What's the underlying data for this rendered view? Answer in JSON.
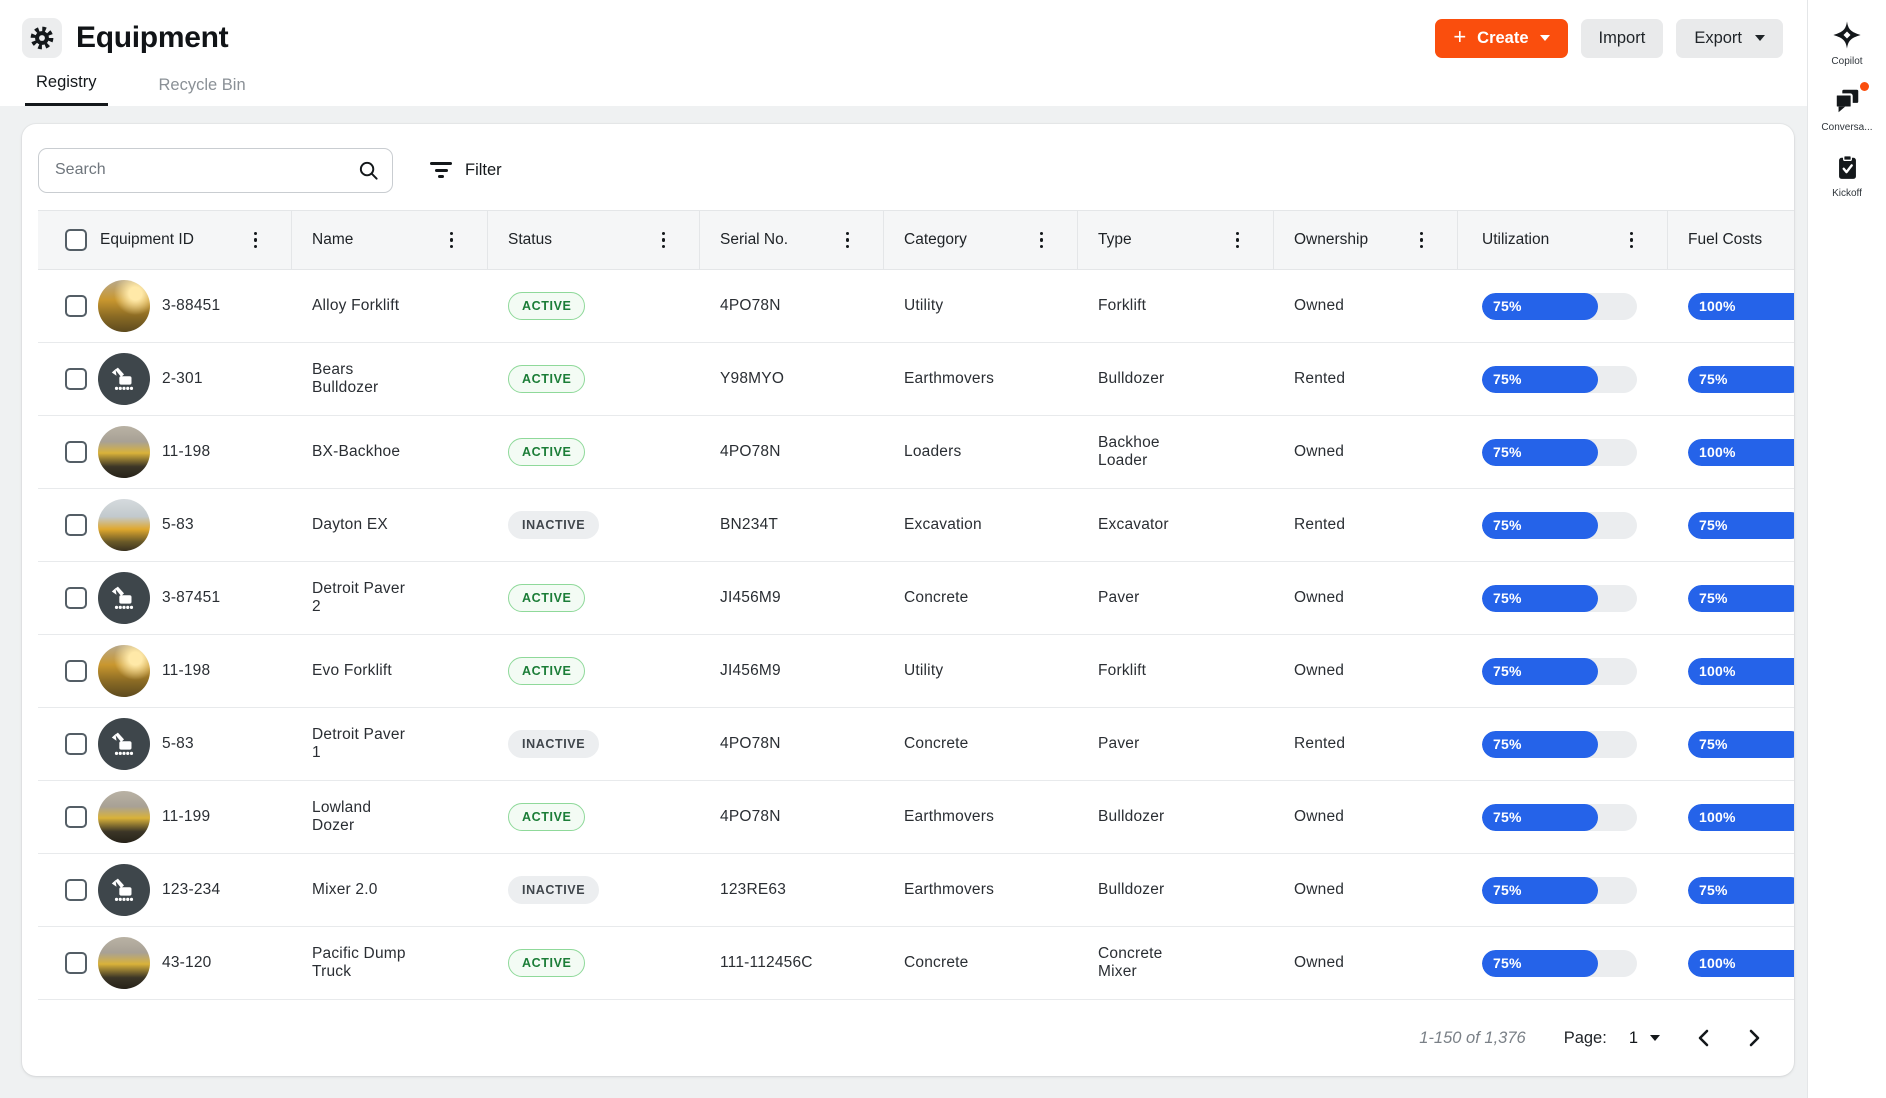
{
  "header": {
    "title": "Equipment",
    "create_label": "Create",
    "import_label": "Import",
    "export_label": "Export",
    "tabs": [
      {
        "label": "Registry",
        "active": true
      },
      {
        "label": "Recycle Bin",
        "active": false
      }
    ]
  },
  "rail": {
    "items": [
      {
        "label": "Copilot",
        "icon": "copilot-sparkle-icon",
        "badge": false
      },
      {
        "label": "Conversa...",
        "icon": "conversations-chat-icon",
        "badge": true
      },
      {
        "label": "Kickoff",
        "icon": "kickoff-clipboard-icon",
        "badge": false
      }
    ]
  },
  "toolbar": {
    "search_placeholder": "Search",
    "filter_label": "Filter"
  },
  "table": {
    "columns": [
      "Equipment ID",
      "Name",
      "Status",
      "Serial No.",
      "Category",
      "Type",
      "Ownership",
      "Utilization",
      "Fuel Costs"
    ],
    "rows": [
      {
        "id": "3-88451",
        "name": "Alloy Forklift",
        "status": "ACTIVE",
        "serial": "4PO78N",
        "category": "Utility",
        "type": "Forklift",
        "ownership": "Owned",
        "utilization": 75,
        "fuel": 100,
        "thumb": "photo-dozer"
      },
      {
        "id": "2-301",
        "name": "Bears\nBulldozer",
        "status": "ACTIVE",
        "serial": "Y98MYO",
        "category": "Earthmovers",
        "type": "Bulldozer",
        "ownership": "Rented",
        "utilization": 75,
        "fuel": 75,
        "thumb": "icon"
      },
      {
        "id": "11-198",
        "name": "BX-Backhoe",
        "status": "ACTIVE",
        "serial": "4PO78N",
        "category": "Loaders",
        "type": "Backhoe\nLoader",
        "ownership": "Owned",
        "utilization": 75,
        "fuel": 100,
        "thumb": "photo-forklift"
      },
      {
        "id": "5-83",
        "name": "Dayton EX",
        "status": "INACTIVE",
        "serial": "BN234T",
        "category": "Excavation",
        "type": "Excavator",
        "ownership": "Rented",
        "utilization": 75,
        "fuel": 75,
        "thumb": "photo-excavator"
      },
      {
        "id": "3-87451",
        "name": "Detroit Paver\n2",
        "status": "ACTIVE",
        "serial": "JI456M9",
        "category": "Concrete",
        "type": "Paver",
        "ownership": "Owned",
        "utilization": 75,
        "fuel": 75,
        "thumb": "icon"
      },
      {
        "id": "11-198",
        "name": "Evo Forklift",
        "status": "ACTIVE",
        "serial": "JI456M9",
        "category": "Utility",
        "type": "Forklift",
        "ownership": "Owned",
        "utilization": 75,
        "fuel": 100,
        "thumb": "photo-dozer"
      },
      {
        "id": "5-83",
        "name": "Detroit Paver\n1",
        "status": "INACTIVE",
        "serial": "4PO78N",
        "category": "Concrete",
        "type": "Paver",
        "ownership": "Rented",
        "utilization": 75,
        "fuel": 75,
        "thumb": "icon"
      },
      {
        "id": "11-199",
        "name": "Lowland\nDozer",
        "status": "ACTIVE",
        "serial": "4PO78N",
        "category": "Earthmovers",
        "type": "Bulldozer",
        "ownership": "Owned",
        "utilization": 75,
        "fuel": 100,
        "thumb": "photo-forklift"
      },
      {
        "id": "123-234",
        "name": "Mixer 2.0",
        "status": "INACTIVE",
        "serial": "123RE63",
        "category": "Earthmovers",
        "type": "Bulldozer",
        "ownership": "Owned",
        "utilization": 75,
        "fuel": 75,
        "thumb": "icon"
      },
      {
        "id": "43-120",
        "name": "Pacific Dump\nTruck",
        "status": "ACTIVE",
        "serial": "111-112456C",
        "category": "Concrete",
        "type": "Concrete\nMixer",
        "ownership": "Owned",
        "utilization": 75,
        "fuel": 100,
        "thumb": "photo-forklift"
      }
    ]
  },
  "pagination": {
    "range_label": "1-150 of 1,376",
    "page_label": "Page:",
    "page_value": "1"
  },
  "colors": {
    "accent_orange": "#FA4E0D",
    "bar_blue": "#2563E9",
    "active_green": "#1B7D37",
    "page_background": "#EFF1F2"
  }
}
